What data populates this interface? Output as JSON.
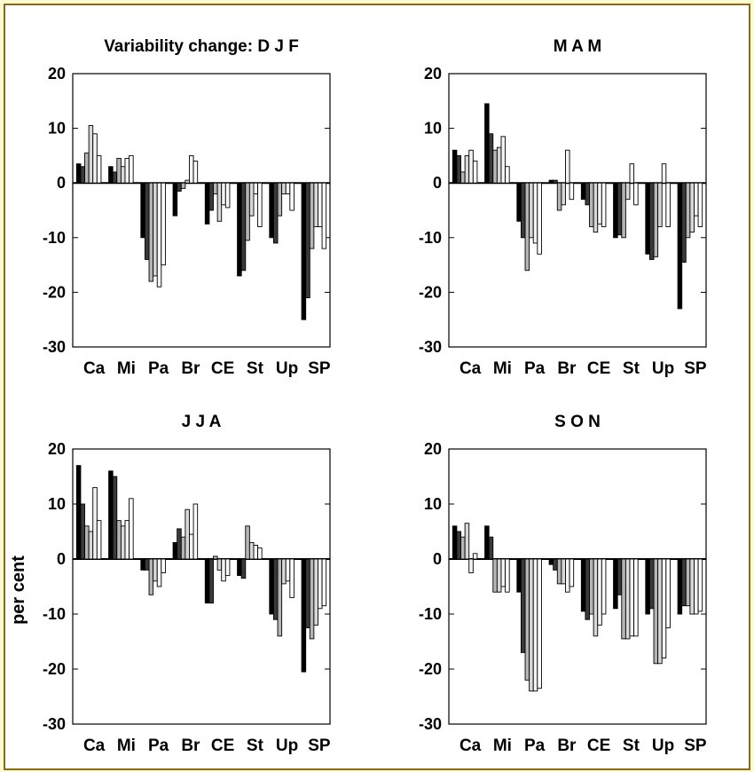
{
  "figure": {
    "ylabel": "per cent"
  },
  "chart_data": [
    {
      "type": "bar",
      "title": "Variability change: D J F",
      "ylim": [
        -30,
        20
      ],
      "yticks": [
        20,
        10,
        0,
        -10,
        -20,
        -30
      ],
      "categories": [
        "Ca",
        "Mi",
        "Pa",
        "Br",
        "CE",
        "St",
        "Up",
        "SP"
      ],
      "values": [
        [
          3.5,
          3,
          5.5,
          10.5,
          9,
          5
        ],
        [
          3,
          2,
          4.5,
          3,
          4.5,
          5
        ],
        [
          -10,
          -14,
          -18,
          -17,
          -19,
          -15
        ],
        [
          -6,
          -1.5,
          -1,
          0.5,
          5,
          4
        ],
        [
          -7.5,
          -5,
          -2,
          -7,
          -4,
          -4.5
        ],
        [
          -17,
          -16,
          -10.5,
          -6,
          -2,
          -8
        ],
        [
          -10,
          -11,
          -6,
          -2,
          -2,
          -5
        ],
        [
          -25,
          -21,
          -12,
          -8,
          -8,
          -12
        ]
      ]
    },
    {
      "type": "bar",
      "title": "M A M",
      "ylim": [
        -30,
        20
      ],
      "yticks": [
        20,
        10,
        0,
        -10,
        -20,
        -30
      ],
      "categories": [
        "Ca",
        "Mi",
        "Pa",
        "Br",
        "CE",
        "St",
        "Up",
        "SP"
      ],
      "values": [
        [
          6,
          5,
          2,
          5,
          6,
          4
        ],
        [
          14.5,
          9,
          6,
          6.5,
          8.5,
          3
        ],
        [
          -7,
          -10,
          -16,
          -10,
          -11,
          -13
        ],
        [
          0.5,
          0.5,
          -5,
          -4,
          6,
          -3
        ],
        [
          -3,
          -4,
          -8,
          -9,
          -7.5,
          -8
        ],
        [
          -10,
          -9.5,
          -10,
          -3,
          3.5,
          -4
        ],
        [
          -13,
          -14,
          -13.5,
          -8,
          3.5,
          -8
        ],
        [
          -23,
          -14.5,
          -10,
          -9,
          -6,
          -8
        ]
      ]
    },
    {
      "type": "bar",
      "title": "J J A",
      "ylim": [
        -30,
        20
      ],
      "yticks": [
        20,
        10,
        0,
        -10,
        -20,
        -30
      ],
      "categories": [
        "Ca",
        "Mi",
        "Pa",
        "Br",
        "CE",
        "St",
        "Up",
        "SP"
      ],
      "values": [
        [
          17,
          10,
          6,
          5,
          13,
          7
        ],
        [
          16,
          15,
          7,
          6,
          7,
          11
        ],
        [
          -2,
          -2,
          -6.5,
          -4,
          -5,
          -2.5
        ],
        [
          3,
          5.5,
          4,
          9,
          4.5,
          10
        ],
        [
          -8,
          -8,
          0.5,
          -2,
          -4,
          -3
        ],
        [
          -3,
          -3.5,
          6,
          3,
          2.5,
          2
        ],
        [
          -10,
          -11,
          -14,
          -4.5,
          -4,
          -7
        ],
        [
          -20.5,
          -12.5,
          -14.5,
          -12,
          -9,
          -8.5
        ]
      ]
    },
    {
      "type": "bar",
      "title": "S O N",
      "ylim": [
        -30,
        20
      ],
      "yticks": [
        20,
        10,
        0,
        -10,
        -20,
        -30
      ],
      "categories": [
        "Ca",
        "Mi",
        "Pa",
        "Br",
        "CE",
        "St",
        "Up",
        "SP"
      ],
      "values": [
        [
          6,
          5,
          4,
          6.5,
          -2.5,
          1
        ],
        [
          6,
          4,
          -6,
          -6,
          -5,
          -6
        ],
        [
          -6,
          -17,
          -22,
          -24,
          -24,
          -23.5
        ],
        [
          -1,
          -2,
          -4.5,
          -4.5,
          -6,
          -5
        ],
        [
          -9.5,
          -11,
          -10,
          -14,
          -12,
          -10
        ],
        [
          -9,
          -6.5,
          -14.5,
          -14.5,
          -14,
          -14
        ],
        [
          -10,
          -9,
          -19,
          -19,
          -18,
          -12.5
        ],
        [
          -10,
          -8.5,
          -8.5,
          -10,
          -10,
          -9.5
        ]
      ]
    }
  ]
}
